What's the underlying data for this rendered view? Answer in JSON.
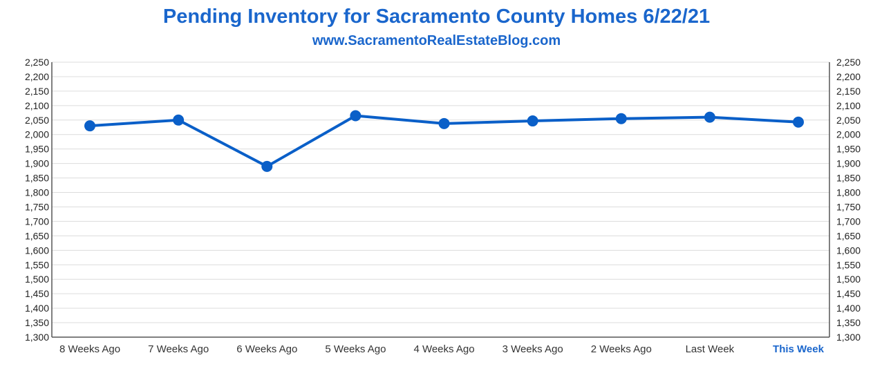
{
  "chart_data": {
    "type": "line",
    "title": "Pending Inventory for Sacramento County Homes 6/22/21",
    "subtitle": "www.SacramentoRealEstateBlog.com",
    "categories": [
      "8 Weeks Ago",
      "7 Weeks Ago",
      "6 Weeks Ago",
      "5 Weeks Ago",
      "4 Weeks Ago",
      "3 Weeks Ago",
      "2 Weeks Ago",
      "Last Week",
      "This Week"
    ],
    "series": [
      {
        "values": [
          2030,
          2050,
          1890,
          2065,
          2038,
          2047,
          2055,
          2060,
          2043
        ]
      }
    ],
    "ylim": [
      1300,
      2250
    ],
    "ytick_step": 50,
    "xlabel": "",
    "ylabel": "",
    "grid": true,
    "legend": "none",
    "line_color": "#0a5fc8",
    "highlight_color": "#1a66cc"
  }
}
